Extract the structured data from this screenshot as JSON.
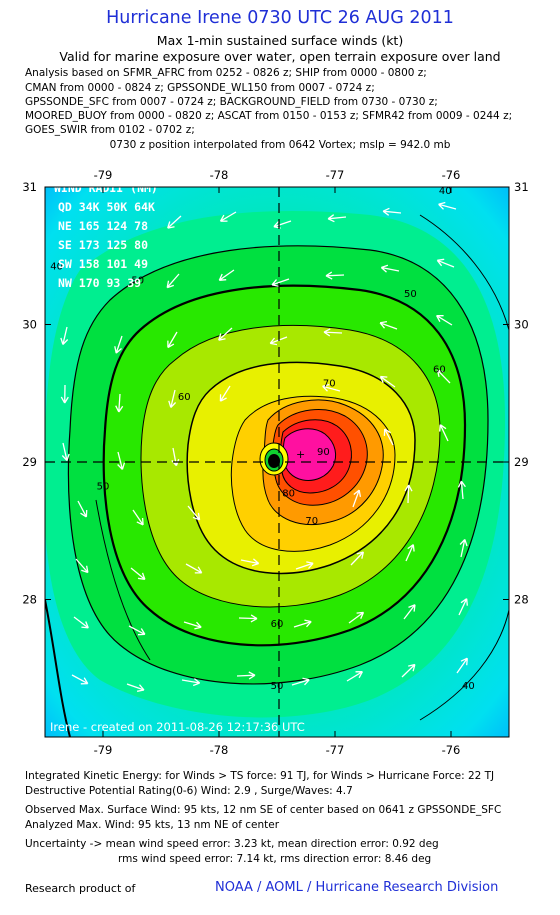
{
  "title": "Hurricane Irene 0730 UTC 26 AUG 2011",
  "subtitle_1": "Max 1-min sustained surface winds (kt)",
  "subtitle_2": "Valid for marine exposure over water, open terrain exposure over land",
  "analysis_lines": [
    "Analysis based on SFMR_AFRC from 0252 - 0826 z; SHIP from 0000 - 0800 z;",
    "CMAN from 0000 - 0824 z; GPSSONDE_WL150 from 0007 - 0724 z;",
    "GPSSONDE_SFC from 0007 - 0724 z; BACKGROUND_FIELD from 0730 - 0730 z;",
    "MOORED_BUOY from 0000 - 0820 z; ASCAT from 0150 - 0153 z; SFMR42 from 0009 - 0244 z;",
    "GOES_SWIR from 0102 - 0702 z;"
  ],
  "position_line": "0730 z position interpolated from 0642 Vortex; mslp = 942.0 mb",
  "wind_radii": {
    "title": "WIND RADII (NM)",
    "header": "QD  34K  50K  64K",
    "rows": [
      "NE  165  124   78",
      "SE  173  125   80",
      "SW  158  101   49",
      "NW  170   93   39"
    ]
  },
  "created_text": "Irene - created on 2011-08-26 12:17:36 UTC",
  "footer_lines": [
    "Integrated Kinetic Energy:  for Winds > TS force: 91 TJ,  for Winds > Hurricane Force: 22 TJ",
    "Destructive Potential Rating(0-6)   Wind: 2.9 , Surge/Waves: 4.7",
    "Observed Max. Surface Wind: 95 kts, 12 nm SE of center based on 0641 z GPSSONDE_SFC",
    "Analyzed Max. Wind: 95 kts, 13 nm NE of center",
    "Uncertainty -> mean wind speed error: 3.23 kt,   mean direction error: 0.92 deg",
    "rms wind speed error: 7.14 kt,   rms direction error: 8.46 deg"
  ],
  "research_label": "Research product of",
  "noaa_label": "NOAA / AOML / Hurricane Research Division",
  "colors": {
    "title_blue": "#1f2fd6",
    "center_line": "#000000"
  },
  "chart_data": {
    "type": "heatmap",
    "xlim": [
      -79.5,
      -75.5
    ],
    "ylim": [
      27.0,
      31.0
    ],
    "x_ticks": [
      -79,
      -78,
      -77,
      -76
    ],
    "x_tick_labels": [
      "-79",
      "-78",
      "-77",
      "-76"
    ],
    "y_ticks": [
      28,
      29,
      30,
      31
    ],
    "y_tick_labels": [
      "28",
      "29",
      "30",
      "31"
    ],
    "center": {
      "lon": -77.35,
      "lat": 29.0
    },
    "max_wind_point": {
      "lon": -77.15,
      "lat": 29.15
    },
    "contour_levels": [
      40,
      50,
      60,
      70,
      80,
      90
    ],
    "contour_labels": [
      {
        "text": "40",
        "lon": -76.05,
        "lat": 30.95
      },
      {
        "text": "40",
        "lon": -79.4,
        "lat": 30.4
      },
      {
        "text": "40",
        "lon": -75.85,
        "lat": 27.35
      },
      {
        "text": "50",
        "lon": -78.7,
        "lat": 30.3
      },
      {
        "text": "50",
        "lon": -76.35,
        "lat": 30.2
      },
      {
        "text": "50",
        "lon": -79.0,
        "lat": 28.8
      },
      {
        "text": "50",
        "lon": -77.5,
        "lat": 27.35
      },
      {
        "text": "60",
        "lon": -78.3,
        "lat": 29.45
      },
      {
        "text": "60",
        "lon": -76.1,
        "lat": 29.65
      },
      {
        "text": "60",
        "lon": -77.5,
        "lat": 27.8
      },
      {
        "text": "70",
        "lon": -77.05,
        "lat": 29.55
      },
      {
        "text": "70",
        "lon": -77.2,
        "lat": 28.55
      },
      {
        "text": "80",
        "lon": -77.4,
        "lat": 28.75
      },
      {
        "text": "90",
        "lon": -77.1,
        "lat": 29.05
      }
    ],
    "wind_radii_nm": {
      "NE": [
        165,
        124,
        78
      ],
      "SE": [
        173,
        125,
        80
      ],
      "SW": [
        158,
        101,
        49
      ],
      "NW": [
        170,
        93,
        39
      ]
    }
  }
}
